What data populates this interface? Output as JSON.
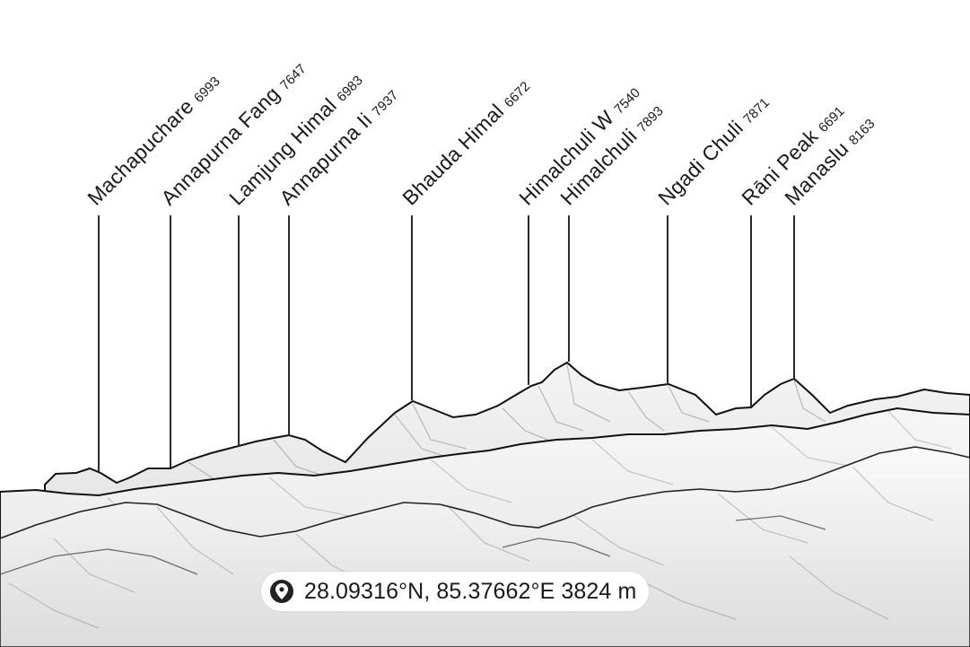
{
  "peaks": [
    {
      "name": "Machapuchare",
      "elevation": "6993"
    },
    {
      "name": "Annapurna Fang",
      "elevation": "7647"
    },
    {
      "name": "Lamjung Himal",
      "elevation": "6983"
    },
    {
      "name": "Annapurna Ii",
      "elevation": "7937"
    },
    {
      "name": "Bhauda Himal",
      "elevation": "6672"
    },
    {
      "name": "Himalchuli W",
      "elevation": "7540"
    },
    {
      "name": "Himalchuli",
      "elevation": "7893"
    },
    {
      "name": "Ngadi Chuli",
      "elevation": "7871"
    },
    {
      "name": "Rāni Peak",
      "elevation": "6691"
    },
    {
      "name": "Manaslu",
      "elevation": "8163"
    }
  ],
  "location": {
    "icon": "location-pin-icon",
    "text": "28.09316°N, 85.37662°E 3824 m"
  },
  "colors": {
    "ink": "#1a1a1a",
    "sky": "#ffffff",
    "terrain": "#e9e9e9"
  }
}
